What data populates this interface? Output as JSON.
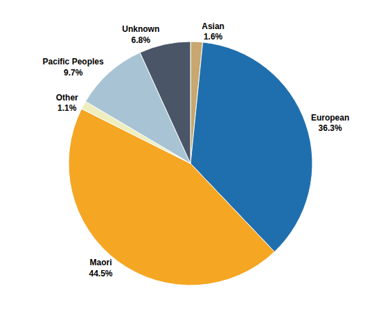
{
  "chart_data": {
    "type": "pie",
    "categories": [
      "Asian",
      "European",
      "Maori",
      "Other",
      "Pacific Peoples",
      "Unknown"
    ],
    "values": [
      1.6,
      36.3,
      44.5,
      1.1,
      9.7,
      6.8
    ],
    "value_labels": [
      "1.6%",
      "36.3%",
      "44.5%",
      "1.1%",
      "9.7%",
      "6.8%"
    ],
    "colors": [
      "#C8A870",
      "#1F6FAE",
      "#F5A623",
      "#EEEEC0",
      "#A8C4D4",
      "#4A5568"
    ],
    "data_labels": true
  }
}
